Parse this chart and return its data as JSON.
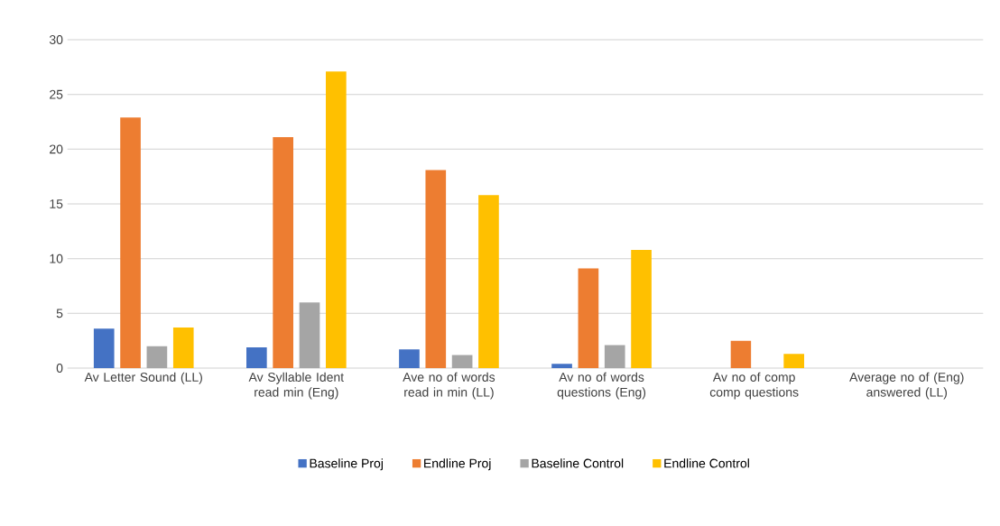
{
  "chart_data": {
    "type": "bar",
    "categories": [
      "Av Letter Sound (LL)",
      "Av Syllable Ident read min (Eng)",
      "Ave no of words read in min (LL)",
      "Av no of words questions (Eng)",
      "Av no of comp comp questions",
      "Average no of (Eng) answered (LL)"
    ],
    "series": [
      {
        "name": "Baseline Proj",
        "color": "#4472c4",
        "values": [
          3.6,
          1.9,
          1.7,
          0.4,
          null,
          null
        ]
      },
      {
        "name": "Endline Proj",
        "color": "#ed7d31",
        "values": [
          22.9,
          21.1,
          18.1,
          9.1,
          2.5,
          null
        ]
      },
      {
        "name": "Baseline Control",
        "color": "#a5a5a5",
        "values": [
          2.0,
          6.0,
          1.2,
          2.1,
          null,
          null
        ]
      },
      {
        "name": "Endline Control",
        "color": "#ffc000",
        "values": [
          3.7,
          27.1,
          15.8,
          10.8,
          1.3,
          null
        ]
      }
    ],
    "ylim": [
      0,
      30
    ],
    "yticks": [
      0,
      5,
      10,
      15,
      20,
      25,
      30
    ],
    "grid": "y",
    "legend": "bottom"
  }
}
